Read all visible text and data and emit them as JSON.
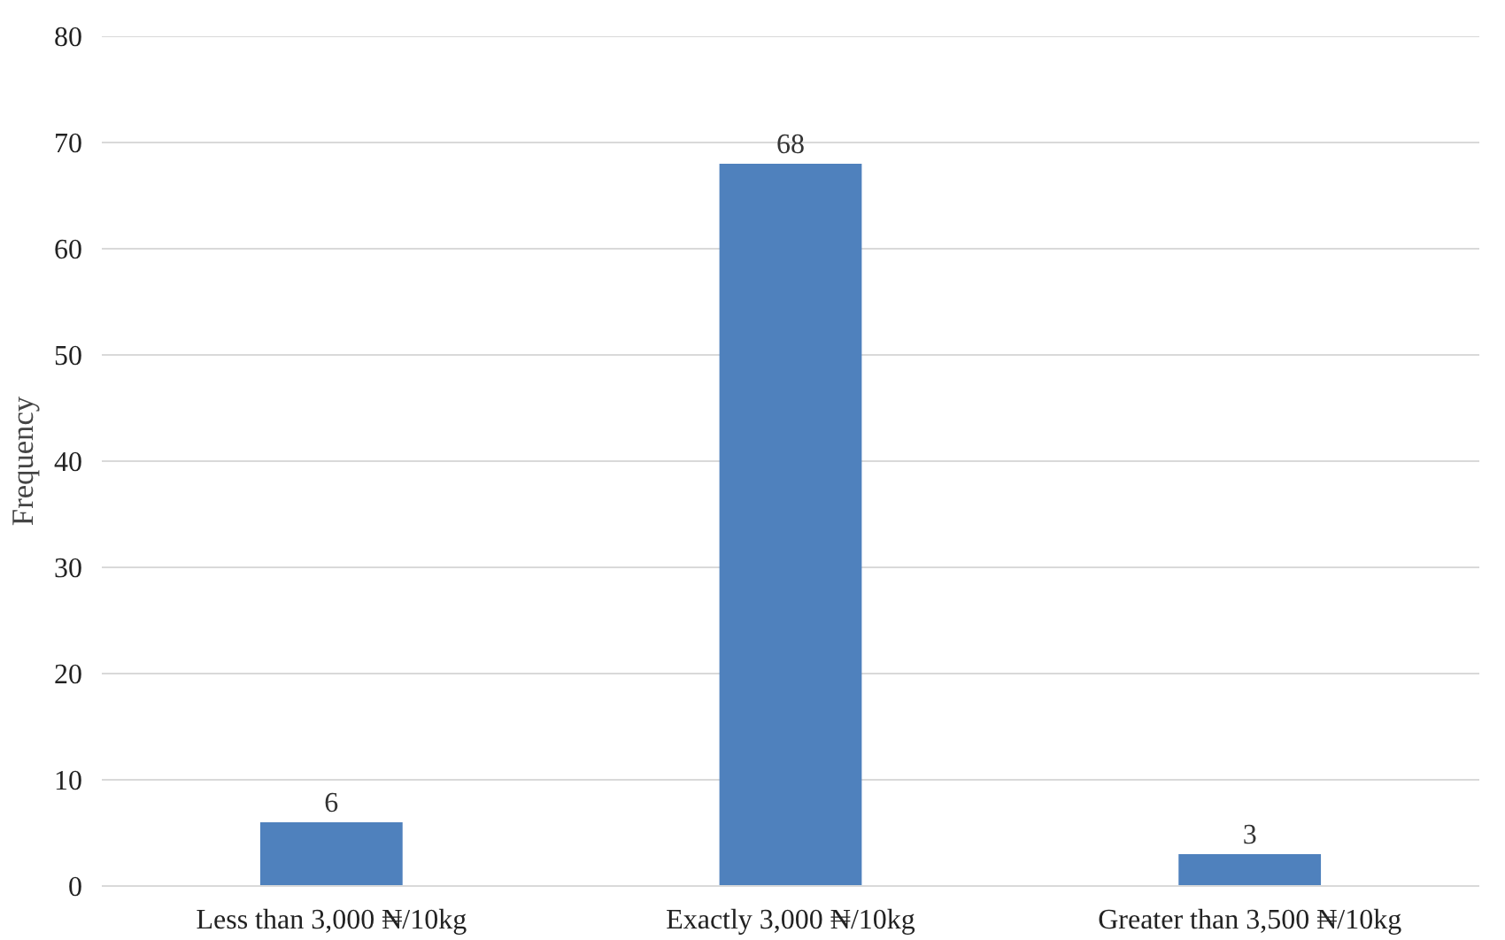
{
  "chart_data": {
    "type": "bar",
    "ylabel": "Frequency",
    "categories": [
      "Less than 3,000 ₦/10kg",
      "Exactly 3,000 ₦/10kg",
      "Greater than 3,500 ₦/10kg"
    ],
    "values": [
      6,
      68,
      3
    ],
    "color": "#4f81bd",
    "ylim": [
      0,
      80
    ],
    "yticks": [
      0,
      10,
      20,
      30,
      40,
      50,
      60,
      70,
      80
    ],
    "grid": "y",
    "data_labels": true
  }
}
